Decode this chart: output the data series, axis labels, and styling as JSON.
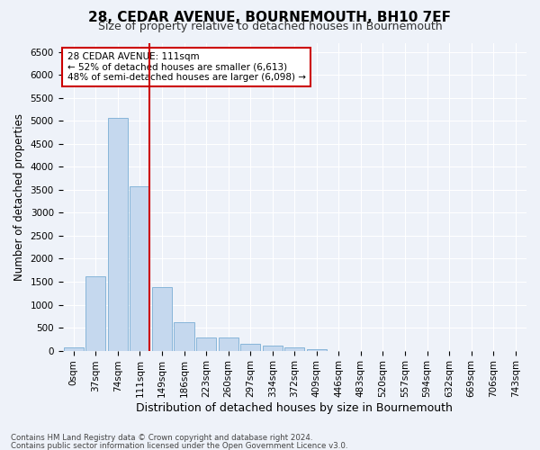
{
  "title": "28, CEDAR AVENUE, BOURNEMOUTH, BH10 7EF",
  "subtitle": "Size of property relative to detached houses in Bournemouth",
  "xlabel": "Distribution of detached houses by size in Bournemouth",
  "ylabel": "Number of detached properties",
  "footnote1": "Contains HM Land Registry data © Crown copyright and database right 2024.",
  "footnote2": "Contains public sector information licensed under the Open Government Licence v3.0.",
  "bar_labels": [
    "0sqm",
    "37sqm",
    "74sqm",
    "111sqm",
    "149sqm",
    "186sqm",
    "223sqm",
    "260sqm",
    "297sqm",
    "334sqm",
    "372sqm",
    "409sqm",
    "446sqm",
    "483sqm",
    "520sqm",
    "557sqm",
    "594sqm",
    "632sqm",
    "669sqm",
    "706sqm",
    "743sqm"
  ],
  "bar_values": [
    70,
    1620,
    5070,
    3570,
    1390,
    610,
    295,
    295,
    145,
    110,
    80,
    40,
    0,
    0,
    0,
    0,
    0,
    0,
    0,
    0,
    0
  ],
  "bar_color": "#c5d8ee",
  "bar_edge_color": "#7aaed4",
  "highlight_bin_index": 3,
  "highlight_line_color": "#cc0000",
  "annotation_text": "28 CEDAR AVENUE: 111sqm\n← 52% of detached houses are smaller (6,613)\n48% of semi-detached houses are larger (6,098) →",
  "annotation_box_color": "#cc0000",
  "ylim": [
    0,
    6700
  ],
  "yticks": [
    0,
    500,
    1000,
    1500,
    2000,
    2500,
    3000,
    3500,
    4000,
    4500,
    5000,
    5500,
    6000,
    6500
  ],
  "bg_color": "#eef2f9",
  "grid_color": "#ffffff",
  "title_fontsize": 11,
  "subtitle_fontsize": 9,
  "xlabel_fontsize": 9,
  "ylabel_fontsize": 8.5,
  "tick_fontsize": 7.5,
  "annot_fontsize": 7.5,
  "footnote_fontsize": 6.2
}
